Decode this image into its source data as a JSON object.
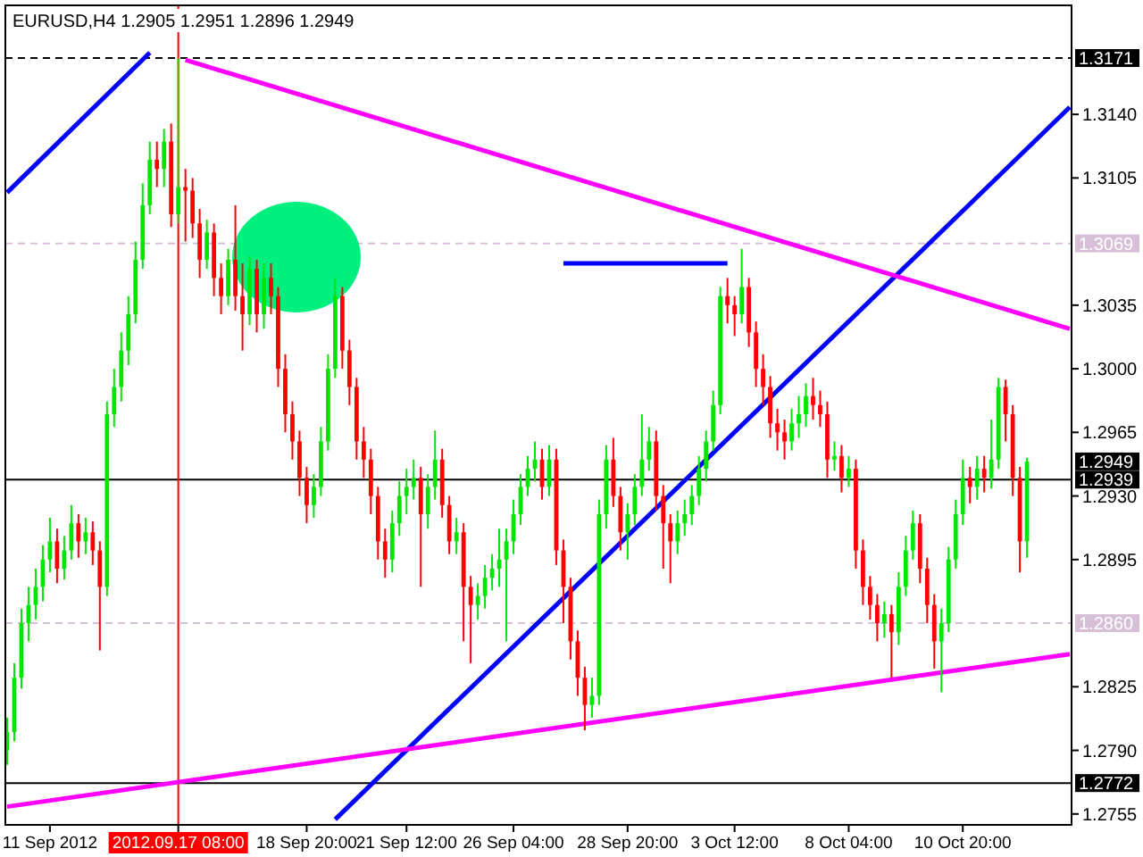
{
  "chart_data": {
    "type": "candlestick",
    "title": "EURUSD,H4  1.2905 1.2951 1.2896 1.2949",
    "categories": [
      null,
      null,
      null,
      null,
      null,
      null,
      "11 Sep 2012",
      null,
      null,
      null,
      null,
      null,
      null,
      null,
      null,
      null,
      null,
      null,
      null,
      null,
      null,
      null,
      null,
      null,
      "2012.09.17 08:00",
      null,
      null,
      null,
      null,
      null,
      null,
      null,
      null,
      null,
      null,
      null,
      null,
      null,
      null,
      null,
      null,
      null,
      "18 Sep 20:00",
      null,
      null,
      null,
      null,
      null,
      null,
      null,
      null,
      null,
      null,
      null,
      null,
      null,
      "21 Sep 12:00",
      null,
      null,
      null,
      null,
      null,
      null,
      null,
      null,
      null,
      null,
      null,
      null,
      null,
      null,
      "26 Sep 04:00",
      null,
      null,
      null,
      null,
      null,
      null,
      null,
      null,
      null,
      null,
      null,
      null,
      null,
      null,
      null,
      "28 Sep 20:00",
      null,
      null,
      null,
      null,
      null,
      null,
      null,
      null,
      null,
      null,
      null,
      null,
      null,
      null,
      "3 Oct 12:00",
      null,
      null,
      null,
      null,
      null,
      null,
      null,
      null,
      null,
      null,
      null,
      null,
      null,
      null,
      null,
      "8 Oct 04:00",
      null,
      null,
      null,
      null,
      null,
      null,
      null,
      null,
      null,
      null,
      null,
      null,
      null,
      null,
      null,
      "10 Oct 20:00",
      null,
      null,
      null,
      null,
      null,
      null,
      null,
      null,
      null,
      null,
      null,
      null,
      null,
      null,
      null
    ],
    "ylim": [
      1.2749,
      1.32
    ],
    "yticks": [
      {
        "value": 1.314,
        "label": "1.3140"
      },
      {
        "value": 1.3105,
        "label": "1.3105"
      },
      {
        "value": 1.3035,
        "label": "1.3035"
      },
      {
        "value": 1.3,
        "label": "1.3000"
      },
      {
        "value": 1.2965,
        "label": "1.2965"
      },
      {
        "value": 1.293,
        "label": "1.2930"
      },
      {
        "value": 1.2895,
        "label": "1.2895"
      },
      {
        "value": 1.2825,
        "label": "1.2825"
      },
      {
        "value": 1.279,
        "label": "1.2790"
      },
      {
        "value": 1.2755,
        "label": "1.2755"
      }
    ],
    "grid": false,
    "series": [
      {
        "ohlc": [
          [
            1.279,
            1.2808,
            1.2782,
            1.28
          ],
          [
            1.28,
            1.2838,
            1.2795,
            1.283
          ],
          [
            1.283,
            1.2868,
            1.2824,
            1.286
          ],
          [
            1.286,
            1.288,
            1.285,
            1.287
          ],
          [
            1.287,
            1.289,
            1.2862,
            1.288
          ],
          [
            1.288,
            1.2903,
            1.2872,
            1.2895
          ],
          [
            1.2895,
            1.2918,
            1.2888,
            1.2905
          ],
          [
            1.2905,
            1.2912,
            1.2882,
            1.289
          ],
          [
            1.289,
            1.2908,
            1.2884,
            1.29
          ],
          [
            1.29,
            1.2925,
            1.2895,
            1.2915
          ],
          [
            1.2915,
            1.292,
            1.2896,
            1.2905
          ],
          [
            1.2905,
            1.2918,
            1.2898,
            1.291
          ],
          [
            1.291,
            1.2916,
            1.2892,
            1.29
          ],
          [
            1.29,
            1.2905,
            1.2845,
            1.288
          ],
          [
            1.288,
            1.2982,
            1.2875,
            1.2975
          ],
          [
            1.2975,
            1.3,
            1.2968,
            1.299
          ],
          [
            1.299,
            1.302,
            1.2982,
            1.301
          ],
          [
            1.301,
            1.304,
            1.3002,
            1.303
          ],
          [
            1.303,
            1.307,
            1.3025,
            1.306
          ],
          [
            1.306,
            1.3102,
            1.3055,
            1.309
          ],
          [
            1.309,
            1.3125,
            1.3085,
            1.3115
          ],
          [
            1.3115,
            1.3125,
            1.31,
            1.311
          ],
          [
            1.311,
            1.3132,
            1.31,
            1.3125
          ],
          [
            1.3125,
            1.3135,
            1.3078,
            1.3085
          ],
          [
            1.3085,
            1.3171,
            1.308,
            1.31
          ],
          [
            1.31,
            1.311,
            1.307,
            1.3098
          ],
          [
            1.3098,
            1.3105,
            1.3072,
            1.308
          ],
          [
            1.308,
            1.3088,
            1.305,
            1.306
          ],
          [
            1.306,
            1.3082,
            1.3055,
            1.3075
          ],
          [
            1.3075,
            1.308,
            1.304,
            1.305
          ],
          [
            1.305,
            1.3058,
            1.303,
            1.304
          ],
          [
            1.304,
            1.3066,
            1.3035,
            1.306
          ],
          [
            1.306,
            1.309,
            1.3032,
            1.304
          ],
          [
            1.304,
            1.3058,
            1.301,
            1.303
          ],
          [
            1.303,
            1.3062,
            1.3024,
            1.3055
          ],
          [
            1.3055,
            1.306,
            1.302,
            1.303
          ],
          [
            1.303,
            1.3058,
            1.3022,
            1.305
          ],
          [
            1.305,
            1.3058,
            1.303,
            1.304
          ],
          [
            1.304,
            1.3045,
            1.299,
            1.3
          ],
          [
            1.3,
            1.3008,
            1.2965,
            1.2975
          ],
          [
            1.2975,
            1.2982,
            1.295,
            1.296
          ],
          [
            1.296,
            1.2966,
            1.293,
            1.294
          ],
          [
            1.294,
            1.2946,
            1.2915,
            1.2925
          ],
          [
            1.2925,
            1.2942,
            1.2918,
            1.2935
          ],
          [
            1.2935,
            1.2968,
            1.293,
            1.296
          ],
          [
            1.296,
            1.3008,
            1.2955,
            1.3
          ],
          [
            1.3,
            1.305,
            1.2995,
            1.304
          ],
          [
            1.304,
            1.3045,
            1.3,
            1.301
          ],
          [
            1.301,
            1.3016,
            1.298,
            1.299
          ],
          [
            1.299,
            1.2995,
            1.295,
            1.296
          ],
          [
            1.296,
            1.2968,
            1.294,
            1.295
          ],
          [
            1.295,
            1.2956,
            1.292,
            1.293
          ],
          [
            1.293,
            1.2935,
            1.2895,
            1.2905
          ],
          [
            1.2905,
            1.2912,
            1.2885,
            1.2895
          ],
          [
            1.2895,
            1.2922,
            1.2888,
            1.2915
          ],
          [
            1.2915,
            1.2938,
            1.2908,
            1.293
          ],
          [
            1.293,
            1.2945,
            1.292,
            1.2935
          ],
          [
            1.2935,
            1.295,
            1.2928,
            1.294
          ],
          [
            1.294,
            1.2946,
            1.288,
            1.292
          ],
          [
            1.292,
            1.2942,
            1.2912,
            1.2935
          ],
          [
            1.2935,
            1.2966,
            1.2928,
            1.295
          ],
          [
            1.295,
            1.2956,
            1.2918,
            1.2925
          ],
          [
            1.2925,
            1.293,
            1.2898,
            1.2905
          ],
          [
            1.2905,
            1.2918,
            1.2898,
            1.291
          ],
          [
            1.291,
            1.2915,
            1.285,
            1.288
          ],
          [
            1.288,
            1.2886,
            1.2838,
            1.287
          ],
          [
            1.287,
            1.2882,
            1.2862,
            1.2875
          ],
          [
            1.2875,
            1.2892,
            1.2868,
            1.2885
          ],
          [
            1.2885,
            1.2898,
            1.2878,
            1.289
          ],
          [
            1.289,
            1.2912,
            1.288,
            1.2895
          ],
          [
            1.2895,
            1.2912,
            1.285,
            1.2905
          ],
          [
            1.2905,
            1.2928,
            1.2898,
            1.292
          ],
          [
            1.292,
            1.2942,
            1.2914,
            1.2935
          ],
          [
            1.2935,
            1.2952,
            1.293,
            1.2945
          ],
          [
            1.2945,
            1.296,
            1.2938,
            1.295
          ],
          [
            1.295,
            1.2956,
            1.2928,
            1.2935
          ],
          [
            1.2935,
            1.2958,
            1.293,
            1.295
          ],
          [
            1.295,
            1.2956,
            1.2892,
            1.29
          ],
          [
            1.29,
            1.2906,
            1.286,
            1.288
          ],
          [
            1.288,
            1.2885,
            1.284,
            1.285
          ],
          [
            1.285,
            1.2856,
            1.282,
            1.283
          ],
          [
            1.283,
            1.2836,
            1.2801,
            1.2815
          ],
          [
            1.2815,
            1.283,
            1.2808,
            1.282
          ],
          [
            1.282,
            1.2928,
            1.2815,
            1.292
          ],
          [
            1.292,
            1.2958,
            1.2912,
            1.295
          ],
          [
            1.295,
            1.2962,
            1.2924,
            1.293
          ],
          [
            1.293,
            1.2935,
            1.29,
            1.291
          ],
          [
            1.291,
            1.2926,
            1.2895,
            1.292
          ],
          [
            1.292,
            1.2942,
            1.2914,
            1.2935
          ],
          [
            1.2935,
            1.2975,
            1.293,
            1.295
          ],
          [
            1.295,
            1.2968,
            1.2944,
            1.296
          ],
          [
            1.296,
            1.2966,
            1.2922,
            1.293
          ],
          [
            1.293,
            1.2936,
            1.289,
            1.2915
          ],
          [
            1.2915,
            1.292,
            1.2882,
            1.2905
          ],
          [
            1.2905,
            1.2922,
            1.2898,
            1.2915
          ],
          [
            1.2915,
            1.2928,
            1.2908,
            1.292
          ],
          [
            1.292,
            1.2936,
            1.2914,
            1.293
          ],
          [
            1.293,
            1.2952,
            1.2925,
            1.2945
          ],
          [
            1.2945,
            1.2966,
            1.2938,
            1.296
          ],
          [
            1.296,
            1.2988,
            1.2955,
            1.298
          ],
          [
            1.298,
            1.3045,
            1.2975,
            1.304
          ],
          [
            1.304,
            1.305,
            1.3025,
            1.3035
          ],
          [
            1.3035,
            1.304,
            1.3018,
            1.303
          ],
          [
            1.303,
            1.3066,
            1.3025,
            1.3045
          ],
          [
            1.3045,
            1.305,
            1.3012,
            1.302
          ],
          [
            1.302,
            1.3026,
            1.299,
            1.3
          ],
          [
            1.3,
            1.3008,
            1.298,
            1.299
          ],
          [
            1.299,
            1.2996,
            1.2962,
            1.297
          ],
          [
            1.297,
            1.2978,
            1.2955,
            1.2965
          ],
          [
            1.2965,
            1.2972,
            1.295,
            1.296
          ],
          [
            1.296,
            1.2978,
            1.2955,
            1.297
          ],
          [
            1.297,
            1.2985,
            1.2962,
            1.2975
          ],
          [
            1.2975,
            1.2992,
            1.2968,
            1.2985
          ],
          [
            1.2985,
            1.2995,
            1.2972,
            1.298
          ],
          [
            1.298,
            1.2988,
            1.2968,
            1.2975
          ],
          [
            1.2975,
            1.2982,
            1.294,
            1.295
          ],
          [
            1.295,
            1.296,
            1.2944,
            1.2952
          ],
          [
            1.2952,
            1.2958,
            1.2932,
            1.294
          ],
          [
            1.294,
            1.2952,
            1.2935,
            1.2945
          ],
          [
            1.2945,
            1.295,
            1.289,
            1.29
          ],
          [
            1.29,
            1.2906,
            1.287,
            1.288
          ],
          [
            1.288,
            1.2886,
            1.2862,
            1.287
          ],
          [
            1.287,
            1.2876,
            1.285,
            1.286
          ],
          [
            1.286,
            1.2872,
            1.2852,
            1.2865
          ],
          [
            1.2865,
            1.287,
            1.283,
            1.2855
          ],
          [
            1.2855,
            1.2888,
            1.2848,
            1.288
          ],
          [
            1.288,
            1.2908,
            1.2875,
            1.29
          ],
          [
            1.29,
            1.2922,
            1.2895,
            1.2915
          ],
          [
            1.2915,
            1.292,
            1.2882,
            1.289
          ],
          [
            1.289,
            1.2896,
            1.286,
            1.287
          ],
          [
            1.287,
            1.2876,
            1.2835,
            1.285
          ],
          [
            1.285,
            1.2868,
            1.2822,
            1.286
          ],
          [
            1.286,
            1.2902,
            1.2855,
            1.2895
          ],
          [
            1.2895,
            1.2928,
            1.289,
            1.292
          ],
          [
            1.292,
            1.295,
            1.2914,
            1.294
          ],
          [
            1.294,
            1.2946,
            1.2926,
            1.2935
          ],
          [
            1.2935,
            1.2952,
            1.2928,
            1.2945
          ],
          [
            1.2945,
            1.2952,
            1.2932,
            1.294
          ],
          [
            1.294,
            1.2972,
            1.2934,
            1.295
          ],
          [
            1.295,
            1.2995,
            1.2945,
            1.299
          ],
          [
            1.299,
            1.2994,
            1.296,
            1.2975
          ],
          [
            1.2975,
            1.298,
            1.293,
            1.294
          ],
          [
            1.294,
            1.2946,
            1.2888,
            1.2905
          ],
          [
            1.2905,
            1.2951,
            1.2896,
            1.2949
          ],
          null,
          null,
          null,
          null,
          null,
          null
        ],
        "colors": [
          "#00e600",
          "#00e600",
          "#00e600",
          "#00e600",
          "#00e600",
          "#00e600",
          "#00e600",
          "#ff0000",
          "#00e600",
          "#00e600",
          "#ff0000",
          "#00e600",
          "#ff0000",
          "#ff0000",
          "#00e600",
          "#00e600",
          "#00e600",
          "#00e600",
          "#00e600",
          "#00e600",
          "#00e600",
          "#ff0000",
          "#00e600",
          "#ff0000",
          "#00e600",
          "#ff0000",
          "#ff0000",
          "#ff0000",
          "#00e600",
          "#ff0000",
          "#ff0000",
          "#00e600",
          "#ff0000",
          "#ff0000",
          "#00e600",
          "#ff0000",
          "#00e600",
          "#ff0000",
          "#ff0000",
          "#ff0000",
          "#ff0000",
          "#ff0000",
          "#ff0000",
          "#00e600",
          "#00e600",
          "#00e600",
          "#00e600",
          "#ff0000",
          "#ff0000",
          "#ff0000",
          "#ff0000",
          "#ff0000",
          "#ff0000",
          "#ff0000",
          "#00e600",
          "#00e600",
          "#00e600",
          "#00e600",
          "#ff0000",
          "#00e600",
          "#00e600",
          "#ff0000",
          "#ff0000",
          "#00e600",
          "#ff0000",
          "#ff0000",
          "#00e600",
          "#00e600",
          "#00e600",
          "#00e600",
          "#00e600",
          "#00e600",
          "#00e600",
          "#00e600",
          "#00e600",
          "#ff0000",
          "#00e600",
          "#ff0000",
          "#ff0000",
          "#ff0000",
          "#ff0000",
          "#ff0000",
          "#00e600",
          "#00e600",
          "#00e600",
          "#ff0000",
          "#ff0000",
          "#00e600",
          "#00e600",
          "#00e600",
          "#00e600",
          "#ff0000",
          "#ff0000",
          "#ff0000",
          "#00e600",
          "#00e600",
          "#00e600",
          "#00e600",
          "#00e600",
          "#00e600",
          "#00e600",
          "#ff0000",
          "#ff0000",
          "#00e600",
          "#ff0000",
          "#ff0000",
          "#ff0000",
          "#ff0000",
          "#ff0000",
          "#ff0000",
          "#00e600",
          "#00e600",
          "#00e600",
          "#ff0000",
          "#ff0000",
          "#ff0000",
          "#00e600",
          "#ff0000",
          "#00e600",
          "#ff0000",
          "#ff0000",
          "#ff0000",
          "#ff0000",
          "#00e600",
          "#ff0000",
          "#00e600",
          "#00e600",
          "#00e600",
          "#ff0000",
          "#ff0000",
          "#ff0000",
          "#00e600",
          "#00e600",
          "#00e600",
          "#00e600",
          "#ff0000",
          "#00e600",
          "#ff0000",
          "#00e600",
          "#00e600",
          "#ff0000",
          "#ff0000",
          "#ff0000",
          "#00e600",
          null,
          null,
          null,
          null,
          null,
          null
        ]
      },
      {
        "type": "line",
        "color": "#0000ff",
        "values": [
          1.3097,
          null,
          null,
          null,
          null,
          null,
          null,
          null,
          null,
          null,
          null,
          null,
          null,
          null,
          null,
          null,
          null,
          null,
          null,
          null,
          1.3174,
          null,
          null,
          null,
          null,
          null,
          null,
          null,
          null,
          null,
          null,
          null,
          null,
          null,
          null,
          null,
          null,
          null,
          null,
          null,
          null,
          null,
          null,
          null,
          null,
          null,
          null,
          null,
          null,
          null,
          null,
          null,
          null,
          null,
          null,
          null,
          null,
          null,
          null,
          null,
          null,
          null,
          null,
          null,
          null,
          null,
          null,
          null,
          null,
          null,
          null,
          null,
          null,
          null,
          null,
          null,
          null,
          null,
          null,
          null,
          null,
          null,
          null,
          null,
          null,
          null,
          null,
          null,
          null,
          null,
          null,
          null,
          null,
          null,
          null,
          null,
          null,
          null,
          null,
          null,
          null,
          null,
          null,
          null,
          null,
          null,
          null,
          null,
          null,
          null,
          null,
          null,
          null,
          null,
          null,
          null,
          null,
          null,
          null,
          null,
          null,
          null,
          null,
          null,
          null,
          null,
          null,
          null,
          null,
          null,
          null,
          null,
          null,
          null,
          null,
          null,
          null,
          null,
          null,
          null,
          null,
          null,
          null,
          null,
          null,
          null,
          null,
          null,
          null,
          null
        ]
      },
      {
        "type": "line",
        "color": "#0000ff",
        "values": [
          null,
          null,
          null,
          null,
          null,
          null,
          null,
          null,
          null,
          null,
          null,
          null,
          null,
          null,
          null,
          null,
          null,
          null,
          null,
          null,
          null,
          null,
          null,
          null,
          null,
          null,
          null,
          null,
          null,
          null,
          null,
          null,
          null,
          null,
          null,
          null,
          null,
          null,
          null,
          null,
          null,
          null,
          null,
          null,
          null,
          null,
          1.2752,
          null,
          null,
          null,
          null,
          null,
          null,
          null,
          null,
          null,
          null,
          null,
          null,
          null,
          null,
          null,
          null,
          null,
          null,
          null,
          null,
          null,
          null,
          null,
          null,
          null,
          null,
          null,
          null,
          null,
          null,
          null,
          null,
          null,
          null,
          null,
          null,
          null,
          null,
          null,
          null,
          null,
          null,
          null,
          null,
          null,
          null,
          null,
          null,
          null,
          null,
          null,
          null,
          null,
          null,
          null,
          null,
          null,
          null,
          null,
          null,
          null,
          null,
          null,
          null,
          null,
          null,
          null,
          null,
          null,
          null,
          null,
          null,
          null,
          null,
          null,
          null,
          null,
          null,
          null,
          null,
          null,
          null,
          null,
          null,
          null,
          null,
          null,
          null,
          null,
          null,
          null,
          null,
          null,
          null,
          null,
          null,
          null,
          null,
          null,
          null,
          null,
          null,
          1.3144
        ]
      },
      {
        "type": "line",
        "color": "#ff00ff",
        "values": [
          null,
          null,
          null,
          null,
          null,
          null,
          null,
          null,
          null,
          null,
          null,
          null,
          null,
          null,
          null,
          null,
          null,
          null,
          null,
          null,
          null,
          null,
          null,
          null,
          null,
          1.317,
          null,
          null,
          null,
          null,
          null,
          null,
          null,
          null,
          null,
          null,
          null,
          null,
          null,
          null,
          null,
          null,
          null,
          null,
          null,
          null,
          null,
          null,
          null,
          null,
          null,
          null,
          null,
          null,
          null,
          null,
          null,
          null,
          null,
          null,
          null,
          null,
          null,
          null,
          null,
          null,
          null,
          null,
          null,
          null,
          null,
          null,
          null,
          null,
          null,
          null,
          null,
          null,
          null,
          null,
          null,
          null,
          null,
          null,
          null,
          null,
          null,
          null,
          null,
          null,
          null,
          null,
          null,
          null,
          null,
          null,
          null,
          null,
          null,
          null,
          null,
          null,
          null,
          null,
          null,
          null,
          null,
          null,
          null,
          null,
          null,
          null,
          null,
          null,
          null,
          null,
          null,
          null,
          null,
          null,
          null,
          null,
          null,
          null,
          null,
          null,
          null,
          null,
          null,
          null,
          null,
          null,
          null,
          null,
          null,
          null,
          null,
          null,
          null,
          null,
          null,
          null,
          null,
          null,
          null,
          null,
          null,
          null,
          null,
          1.3022
        ]
      },
      {
        "type": "line",
        "color": "#ff00ff",
        "values": [
          1.2759,
          null,
          null,
          null,
          null,
          null,
          null,
          null,
          null,
          null,
          null,
          null,
          null,
          null,
          null,
          null,
          null,
          null,
          null,
          null,
          null,
          null,
          null,
          null,
          null,
          null,
          null,
          null,
          null,
          null,
          null,
          null,
          null,
          null,
          null,
          null,
          null,
          null,
          null,
          null,
          null,
          null,
          null,
          null,
          null,
          null,
          null,
          null,
          null,
          null,
          null,
          null,
          null,
          null,
          null,
          null,
          null,
          null,
          null,
          null,
          null,
          null,
          null,
          null,
          null,
          null,
          null,
          null,
          null,
          null,
          null,
          null,
          null,
          null,
          null,
          null,
          null,
          null,
          null,
          null,
          null,
          null,
          null,
          null,
          null,
          null,
          null,
          null,
          null,
          null,
          null,
          null,
          null,
          null,
          null,
          null,
          null,
          null,
          null,
          null,
          null,
          null,
          null,
          null,
          null,
          null,
          null,
          null,
          null,
          null,
          null,
          null,
          null,
          null,
          null,
          null,
          null,
          null,
          null,
          null,
          null,
          null,
          null,
          null,
          null,
          null,
          null,
          null,
          null,
          null,
          null,
          null,
          null,
          null,
          null,
          null,
          null,
          null,
          null,
          null,
          null,
          null,
          null,
          null,
          null,
          null,
          null,
          null,
          null,
          1.2843
        ]
      },
      {
        "type": "line",
        "color": "#0000ff",
        "values": [
          null,
          null,
          null,
          null,
          null,
          null,
          null,
          null,
          null,
          null,
          null,
          null,
          null,
          null,
          null,
          null,
          null,
          null,
          null,
          null,
          null,
          null,
          null,
          null,
          null,
          null,
          null,
          null,
          null,
          null,
          null,
          null,
          null,
          null,
          null,
          null,
          null,
          null,
          null,
          null,
          null,
          null,
          null,
          null,
          null,
          null,
          null,
          null,
          null,
          null,
          null,
          null,
          null,
          null,
          null,
          null,
          null,
          null,
          null,
          null,
          null,
          null,
          null,
          null,
          null,
          null,
          null,
          null,
          null,
          null,
          null,
          null,
          null,
          null,
          null,
          null,
          null,
          null,
          1.3058,
          null,
          null,
          null,
          null,
          null,
          null,
          null,
          null,
          null,
          null,
          null,
          null,
          null,
          null,
          null,
          null,
          null,
          null,
          null,
          null,
          null,
          null,
          1.3058,
          null,
          null,
          null,
          null,
          null,
          null,
          null,
          null,
          null,
          null,
          null,
          null,
          null,
          null,
          null,
          null,
          null,
          null,
          null,
          null,
          null,
          null,
          null,
          null,
          null,
          null,
          null,
          null,
          null,
          null,
          null,
          null,
          null,
          null,
          null,
          null,
          null,
          null,
          null,
          null,
          null,
          null,
          null,
          null,
          null,
          null,
          null,
          null
        ]
      }
    ],
    "ref_lines": [
      {
        "axis": "y",
        "value": 1.3171,
        "label": "1.3171",
        "color": "#000000",
        "line_style": "dashed"
      },
      {
        "axis": "y",
        "value": 1.3069,
        "label": "1.3069",
        "color": "#d8bfd8",
        "line_style": "dashed"
      },
      {
        "axis": "y",
        "value": 1.2939,
        "label": "1.2939",
        "color": "#000000",
        "line_style": "solid"
      },
      {
        "axis": "y",
        "value": 1.286,
        "label": "1.2860",
        "color": "#d8bfd8",
        "line_style": "dashed"
      },
      {
        "axis": "y",
        "value": 1.2772,
        "label": "1.2772",
        "color": "#000000",
        "line_style": "solid"
      },
      {
        "axis": "x",
        "value": "2012.09.17 08:00",
        "color": "#ff0000",
        "line_style": "solid"
      }
    ],
    "annotations": [
      "1.2949"
    ]
  }
}
